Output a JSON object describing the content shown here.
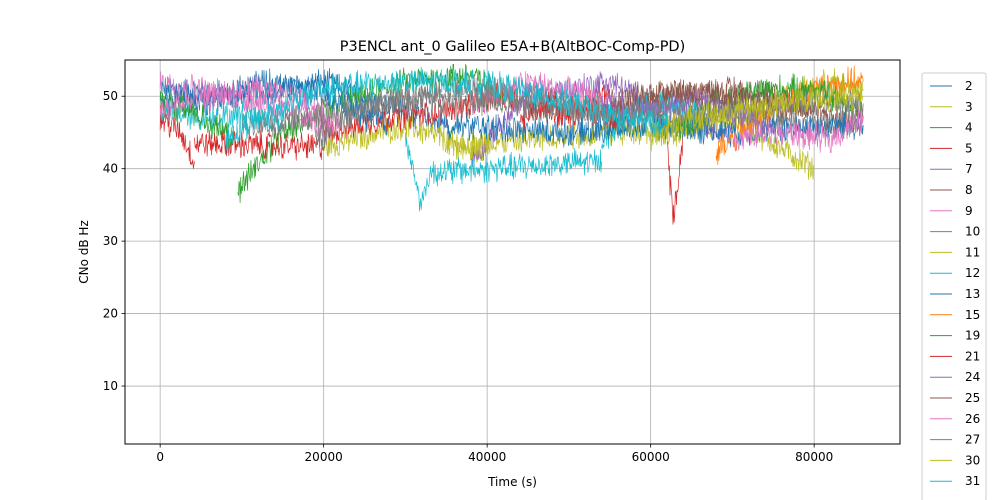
{
  "chart_data": {
    "type": "line",
    "title": "P3ENCL ant_0 Galileo E5A+B(AltBOC-Comp-PD)",
    "xlabel": "Time (s)",
    "ylabel": "CNo dB Hz",
    "xlim": [
      -4300,
      90500
    ],
    "ylim": [
      2,
      55
    ],
    "xticks": [
      0,
      20000,
      40000,
      60000,
      80000
    ],
    "xtick_labels": [
      "0",
      "20000",
      "40000",
      "60000",
      "80000"
    ],
    "yticks": [
      10,
      20,
      30,
      40,
      50
    ],
    "ytick_labels": [
      "10",
      "20",
      "30",
      "40",
      "50"
    ],
    "grid": true,
    "legend_position": "right-outside",
    "series": [
      {
        "name": "2",
        "color": "#1f77b4",
        "segments": [
          [
            [
              0,
              51
            ],
            [
              10000,
              50
            ],
            [
              20000,
              52
            ],
            [
              30000,
              48
            ],
            [
              35000,
              46
            ]
          ]
        ]
      },
      {
        "name": "3",
        "color": "#bcbd22",
        "segments": [
          [
            [
              20000,
              43
            ],
            [
              30000,
              46
            ],
            [
              40000,
              42
            ]
          ],
          [
            [
              60000,
              44
            ],
            [
              70000,
              47
            ],
            [
              80000,
              40
            ]
          ]
        ]
      },
      {
        "name": "4",
        "color": "#2ca02c",
        "segments": [
          [
            [
              9500,
              37
            ],
            [
              15000,
              45
            ],
            [
              22000,
              49
            ],
            [
              30000,
              52
            ],
            [
              38000,
              53
            ],
            [
              42000,
              50
            ]
          ]
        ]
      },
      {
        "name": "5",
        "color": "#d62728",
        "segments": [
          [
            [
              0,
              47
            ],
            [
              2500,
              45
            ],
            [
              4200,
              41
            ]
          ],
          [
            [
              4200,
              43.5
            ],
            [
              20000,
              43
            ]
          ],
          [
            [
              20000,
              45
            ],
            [
              28000,
              47
            ],
            [
              35000,
              48
            ],
            [
              42000,
              50
            ],
            [
              50000,
              47
            ],
            [
              55000,
              51
            ]
          ],
          [
            [
              62000,
              43
            ],
            [
              62800,
              33
            ],
            [
              64000,
              45
            ]
          ]
        ]
      },
      {
        "name": "7",
        "color": "#9467bd",
        "segments": [
          [
            [
              38000,
              41
            ],
            [
              41000,
              45
            ],
            [
              45000,
              50
            ],
            [
              55000,
              52
            ],
            [
              60000,
              49
            ],
            [
              65000,
              47
            ],
            [
              70000,
              45
            ]
          ]
        ]
      },
      {
        "name": "8",
        "color": "#8c564b",
        "segments": [
          [
            [
              55000,
              46
            ],
            [
              62000,
              50
            ],
            [
              70000,
              51
            ],
            [
              76000,
              50
            ],
            [
              82000,
              47
            ],
            [
              86000,
              47
            ]
          ]
        ]
      },
      {
        "name": "9",
        "color": "#e377c2",
        "segments": [
          [
            [
              0,
              52
            ],
            [
              5000,
              51
            ],
            [
              12000,
              49
            ],
            [
              18000,
              47
            ],
            [
              21000,
              45
            ]
          ],
          [
            [
              38000,
              49
            ],
            [
              45000,
              52
            ],
            [
              52000,
              50
            ],
            [
              56000,
              48
            ]
          ]
        ]
      },
      {
        "name": "10",
        "color": "#7f7f7f",
        "segments": [
          [
            [
              19000,
              44
            ],
            [
              25000,
              48
            ],
            [
              32000,
              50
            ],
            [
              38000,
              51
            ],
            [
              45000,
              50
            ],
            [
              55000,
              48
            ],
            [
              62000,
              49
            ],
            [
              70000,
              48
            ],
            [
              78000,
              46
            ],
            [
              86000,
              46
            ]
          ]
        ]
      },
      {
        "name": "11",
        "color": "#bcbd22",
        "segments": [
          [
            [
              35000,
              43
            ],
            [
              45000,
              44
            ],
            [
              55000,
              45
            ],
            [
              65000,
              46
            ],
            [
              75000,
              49
            ],
            [
              82000,
              52
            ],
            [
              86000,
              51
            ]
          ]
        ]
      },
      {
        "name": "12",
        "color": "#17becf",
        "segments": [
          [
            [
              0,
              48
            ],
            [
              5000,
              47
            ],
            [
              10000,
              47.5
            ],
            [
              15000,
              46.5
            ]
          ],
          [
            [
              30000,
              44
            ],
            [
              32000,
              35
            ],
            [
              33000,
              39.5
            ]
          ],
          [
            [
              33000,
              39.5
            ],
            [
              54000,
              41
            ]
          ],
          [
            [
              54000,
              44
            ],
            [
              58000,
              48
            ],
            [
              62000,
              49
            ],
            [
              66000,
              47
            ]
          ]
        ]
      },
      {
        "name": "13",
        "color": "#1f77b4",
        "segments": [
          [
            [
              0,
              50
            ],
            [
              6000,
              49
            ],
            [
              12000,
              52
            ],
            [
              18000,
              51
            ],
            [
              24000,
              48
            ],
            [
              28000,
              46
            ]
          ],
          [
            [
              35000,
              46
            ],
            [
              50000,
              45
            ],
            [
              60000,
              46
            ],
            [
              70000,
              45
            ],
            [
              86000,
              46
            ]
          ]
        ]
      },
      {
        "name": "15",
        "color": "#ff7f0e",
        "segments": [
          [
            [
              68000,
              42
            ],
            [
              72000,
              46
            ],
            [
              76000,
              49
            ],
            [
              80000,
              51
            ],
            [
              84000,
              52
            ],
            [
              86000,
              52
            ]
          ]
        ]
      },
      {
        "name": "19",
        "color": "#2ca02c",
        "segments": [
          [
            [
              0,
              49
            ],
            [
              4000,
              48
            ],
            [
              9000,
              44
            ]
          ],
          [
            [
              63000,
              45
            ],
            [
              68000,
              49
            ],
            [
              74000,
              51
            ],
            [
              80000,
              51
            ],
            [
              86000,
              48
            ]
          ]
        ]
      },
      {
        "name": "21",
        "color": "#d62728",
        "segments": [
          [
            [
              44000,
              47
            ],
            [
              48000,
              49
            ],
            [
              52000,
              48
            ],
            [
              56000,
              47
            ]
          ]
        ]
      },
      {
        "name": "24",
        "color": "#9467bd",
        "segments": [
          [
            [
              54000,
              49
            ],
            [
              60000,
              48
            ],
            [
              65000,
              50
            ],
            [
              70000,
              48
            ],
            [
              75000,
              46
            ]
          ]
        ]
      },
      {
        "name": "25",
        "color": "#8c564b",
        "segments": [
          [
            [
              55000,
              49
            ],
            [
              62000,
              51
            ],
            [
              68000,
              50
            ],
            [
              74000,
              49
            ],
            [
              80000,
              48
            ]
          ]
        ]
      },
      {
        "name": "26",
        "color": "#e377c2",
        "segments": [
          [
            [
              0,
              48
            ],
            [
              6000,
              50
            ],
            [
              12000,
              51
            ],
            [
              18000,
              49
            ],
            [
              22000,
              46
            ]
          ],
          [
            [
              70000,
              44
            ],
            [
              76000,
              45
            ],
            [
              82000,
              44
            ],
            [
              86000,
              47
            ]
          ]
        ]
      },
      {
        "name": "27",
        "color": "#7f7f7f",
        "segments": [
          [
            [
              10000,
              46
            ],
            [
              20000,
              47
            ],
            [
              30000,
              50
            ],
            [
              40000,
              49
            ],
            [
              50000,
              48
            ],
            [
              60000,
              47
            ],
            [
              70000,
              48
            ],
            [
              80000,
              49
            ],
            [
              86000,
              49
            ]
          ]
        ]
      },
      {
        "name": "30",
        "color": "#bcbd22",
        "segments": [
          [
            [
              60000,
              45
            ],
            [
              65000,
              47
            ],
            [
              70000,
              48
            ],
            [
              76000,
              49
            ],
            [
              82000,
              50
            ],
            [
              86000,
              50
            ]
          ]
        ]
      },
      {
        "name": "31",
        "color": "#17becf",
        "segments": [
          [
            [
              8000,
              44
            ],
            [
              12000,
              47
            ],
            [
              20000,
              51
            ],
            [
              28000,
              52
            ],
            [
              36000,
              52
            ],
            [
              44000,
              51
            ],
            [
              50000,
              49
            ],
            [
              56000,
              47
            ],
            [
              62000,
              46
            ]
          ]
        ]
      }
    ]
  }
}
